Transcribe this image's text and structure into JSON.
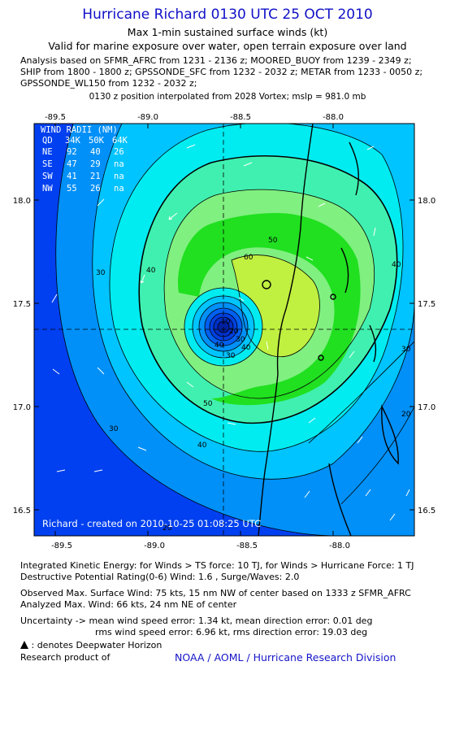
{
  "header": {
    "title": "Hurricane Richard 0130 UTC 25 OCT 2010",
    "subtitle1": "Max 1-min sustained surface winds (kt)",
    "subtitle2": "Valid for marine exposure over water, open terrain exposure over land",
    "analysis_lines": [
      "Analysis based on SFMR_AFRC from 1231 - 2136 z; MOORED_BUOY from 1239 - 2349 z;",
      "SHIP from 1800 - 1800 z; GPSSONDE_SFC from 1232 - 2032 z; METAR from 1233 - 0050 z;",
      "GPSSONDE_WL150 from 1232 - 2032 z;"
    ],
    "position_note": "0130 z position interpolated from 2028 Vortex; mslp = 981.0 mb"
  },
  "map": {
    "lon_ticks": [
      "-89.5",
      "-89.0",
      "-88.5",
      "-88.0"
    ],
    "lat_ticks": [
      "18.0",
      "17.5",
      "17.0",
      "16.5"
    ],
    "center": {
      "lon": -88.6,
      "lat": 17.38
    },
    "contour_labels": [
      "30",
      "40",
      "50",
      "60",
      "30",
      "40",
      "50",
      "40",
      "30",
      "20",
      "20",
      "30",
      "40",
      "10",
      "20",
      "30",
      "40"
    ],
    "credit": "Richard - created on 2010-10-25 01:08:25 UTC",
    "colors": {
      "band_10": "#0038f0",
      "band_20": "#0090f8",
      "band_30": "#00c4ff",
      "band_40": "#00ecf0",
      "band_50": "#40f0b0",
      "band_60": "#80f080",
      "band_70": "#20e020",
      "band_80": "#c0f040"
    }
  },
  "wind_radii": {
    "title": "WIND RADII (NM)",
    "header": [
      "QD",
      "34K",
      "50K",
      "64K"
    ],
    "rows": [
      [
        "NE",
        "92",
        "40",
        "26"
      ],
      [
        "SE",
        "47",
        "29",
        "na"
      ],
      [
        "SW",
        "41",
        "21",
        "na"
      ],
      [
        "NW",
        "55",
        "26",
        "na"
      ]
    ]
  },
  "footer": {
    "ike": "Integrated Kinetic Energy:  for Winds > TS force: 10 TJ,  for Winds > Hurricane Force: 1 TJ",
    "dpr": "Destructive Potential Rating(0-6)   Wind: 1.6 , Surge/Waves: 2.0",
    "observed": "Observed Max. Surface Wind: 75 kts, 15 nm NW of center based on 1333 z SFMR_AFRC",
    "analyzed": "Analyzed Max. Wind: 66 kts, 24 nm NE of center",
    "uncertainty1": "Uncertainty -> mean wind speed error: 1.34 kt,   mean direction error: 0.01 deg",
    "uncertainty2": "rms wind speed error: 6.96 kt,   rms direction error: 19.03 deg",
    "deepwater": ": denotes Deepwater Horizon",
    "research": "Research product of",
    "org": "NOAA / AOML / Hurricane Research Division"
  }
}
